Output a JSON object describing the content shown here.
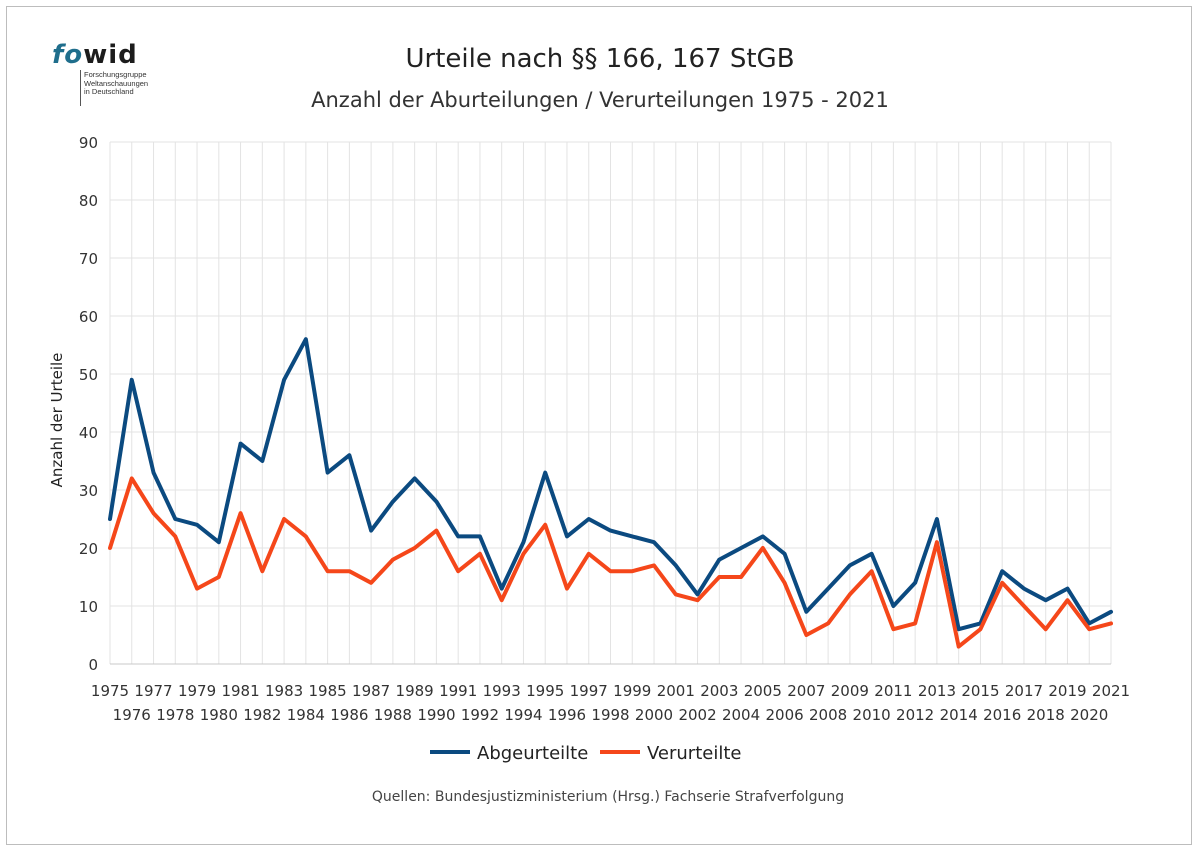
{
  "logo": {
    "fo": "fo",
    "wid": "wid",
    "line1": "Forschungsgruppe",
    "line2": "Weltanschauungen",
    "line3": "in Deutschland"
  },
  "source": "Quellen: Bundesjustizministerium (Hrsg.) Fachserie Strafverfolgung",
  "colors": {
    "abgeurteilte": "#0b4a80",
    "verurteilte": "#f5471a",
    "grid": "#e3e3e3"
  },
  "chart_data": {
    "type": "line",
    "title": "Urteile nach §§ 166, 167 StGB",
    "subtitle": "Anzahl der Aburteilungen / Verurteilungen 1975 - 2021",
    "xlabel": "",
    "ylabel": "Anzahl der Urteile",
    "ylim": [
      0,
      90
    ],
    "yticks": [
      0,
      10,
      20,
      30,
      40,
      50,
      60,
      70,
      80,
      90
    ],
    "grid": true,
    "legend": "bottom",
    "x": [
      1975,
      1976,
      1977,
      1978,
      1979,
      1980,
      1981,
      1982,
      1983,
      1984,
      1985,
      1986,
      1987,
      1988,
      1989,
      1990,
      1991,
      1992,
      1993,
      1994,
      1995,
      1996,
      1997,
      1998,
      1999,
      2000,
      2001,
      2002,
      2003,
      2004,
      2005,
      2006,
      2007,
      2008,
      2009,
      2010,
      2011,
      2012,
      2013,
      2014,
      2015,
      2016,
      2017,
      2018,
      2019,
      2020,
      2021
    ],
    "series": [
      {
        "name": "Abgeurteilte",
        "values": [
          25,
          49,
          33,
          25,
          24,
          21,
          38,
          35,
          49,
          56,
          33,
          36,
          23,
          28,
          32,
          28,
          22,
          22,
          13,
          21,
          33,
          22,
          25,
          23,
          22,
          21,
          17,
          12,
          18,
          20,
          22,
          19,
          9,
          13,
          17,
          19,
          10,
          14,
          25,
          6,
          7,
          16,
          13,
          11,
          13,
          7,
          9
        ]
      },
      {
        "name": "Verurteilte",
        "values": [
          20,
          32,
          26,
          22,
          13,
          15,
          26,
          16,
          25,
          22,
          16,
          16,
          14,
          18,
          20,
          23,
          16,
          19,
          11,
          19,
          24,
          13,
          19,
          16,
          16,
          17,
          12,
          11,
          15,
          15,
          20,
          14,
          5,
          7,
          12,
          16,
          6,
          7,
          21,
          3,
          6,
          14,
          10,
          6,
          11,
          6,
          7
        ]
      }
    ]
  }
}
